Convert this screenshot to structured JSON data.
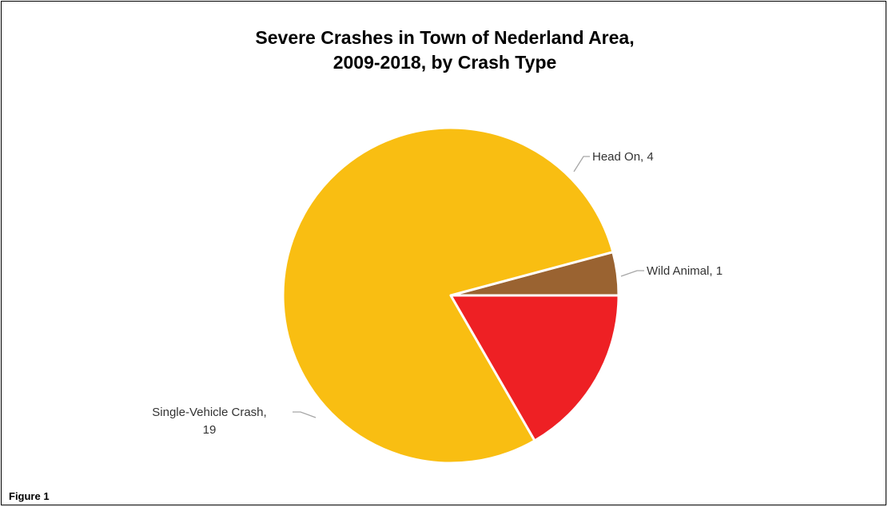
{
  "figure_label": "Figure 1",
  "chart_data": {
    "type": "pie",
    "title": "Severe Crashes in Town of Nederland Area,",
    "subtitle": "2009-2018, by Crash Type",
    "start_angle_deg": 90,
    "direction": "clockwise",
    "legend": "none",
    "slices": [
      {
        "name": "Wild Animal",
        "label_line1": "Wild Animal, 1",
        "label_line2": "",
        "value": 1,
        "color": "#9A6331"
      },
      {
        "name": "Single-Vehicle Crash",
        "label_line1": "Single-Vehicle Crash,",
        "label_line2": "19",
        "value": 19,
        "color": "#F9BE12"
      },
      {
        "name": "Head On",
        "label_line1": "Head On, 4",
        "label_line2": "",
        "value": 4,
        "color": "#EE2024"
      }
    ]
  }
}
